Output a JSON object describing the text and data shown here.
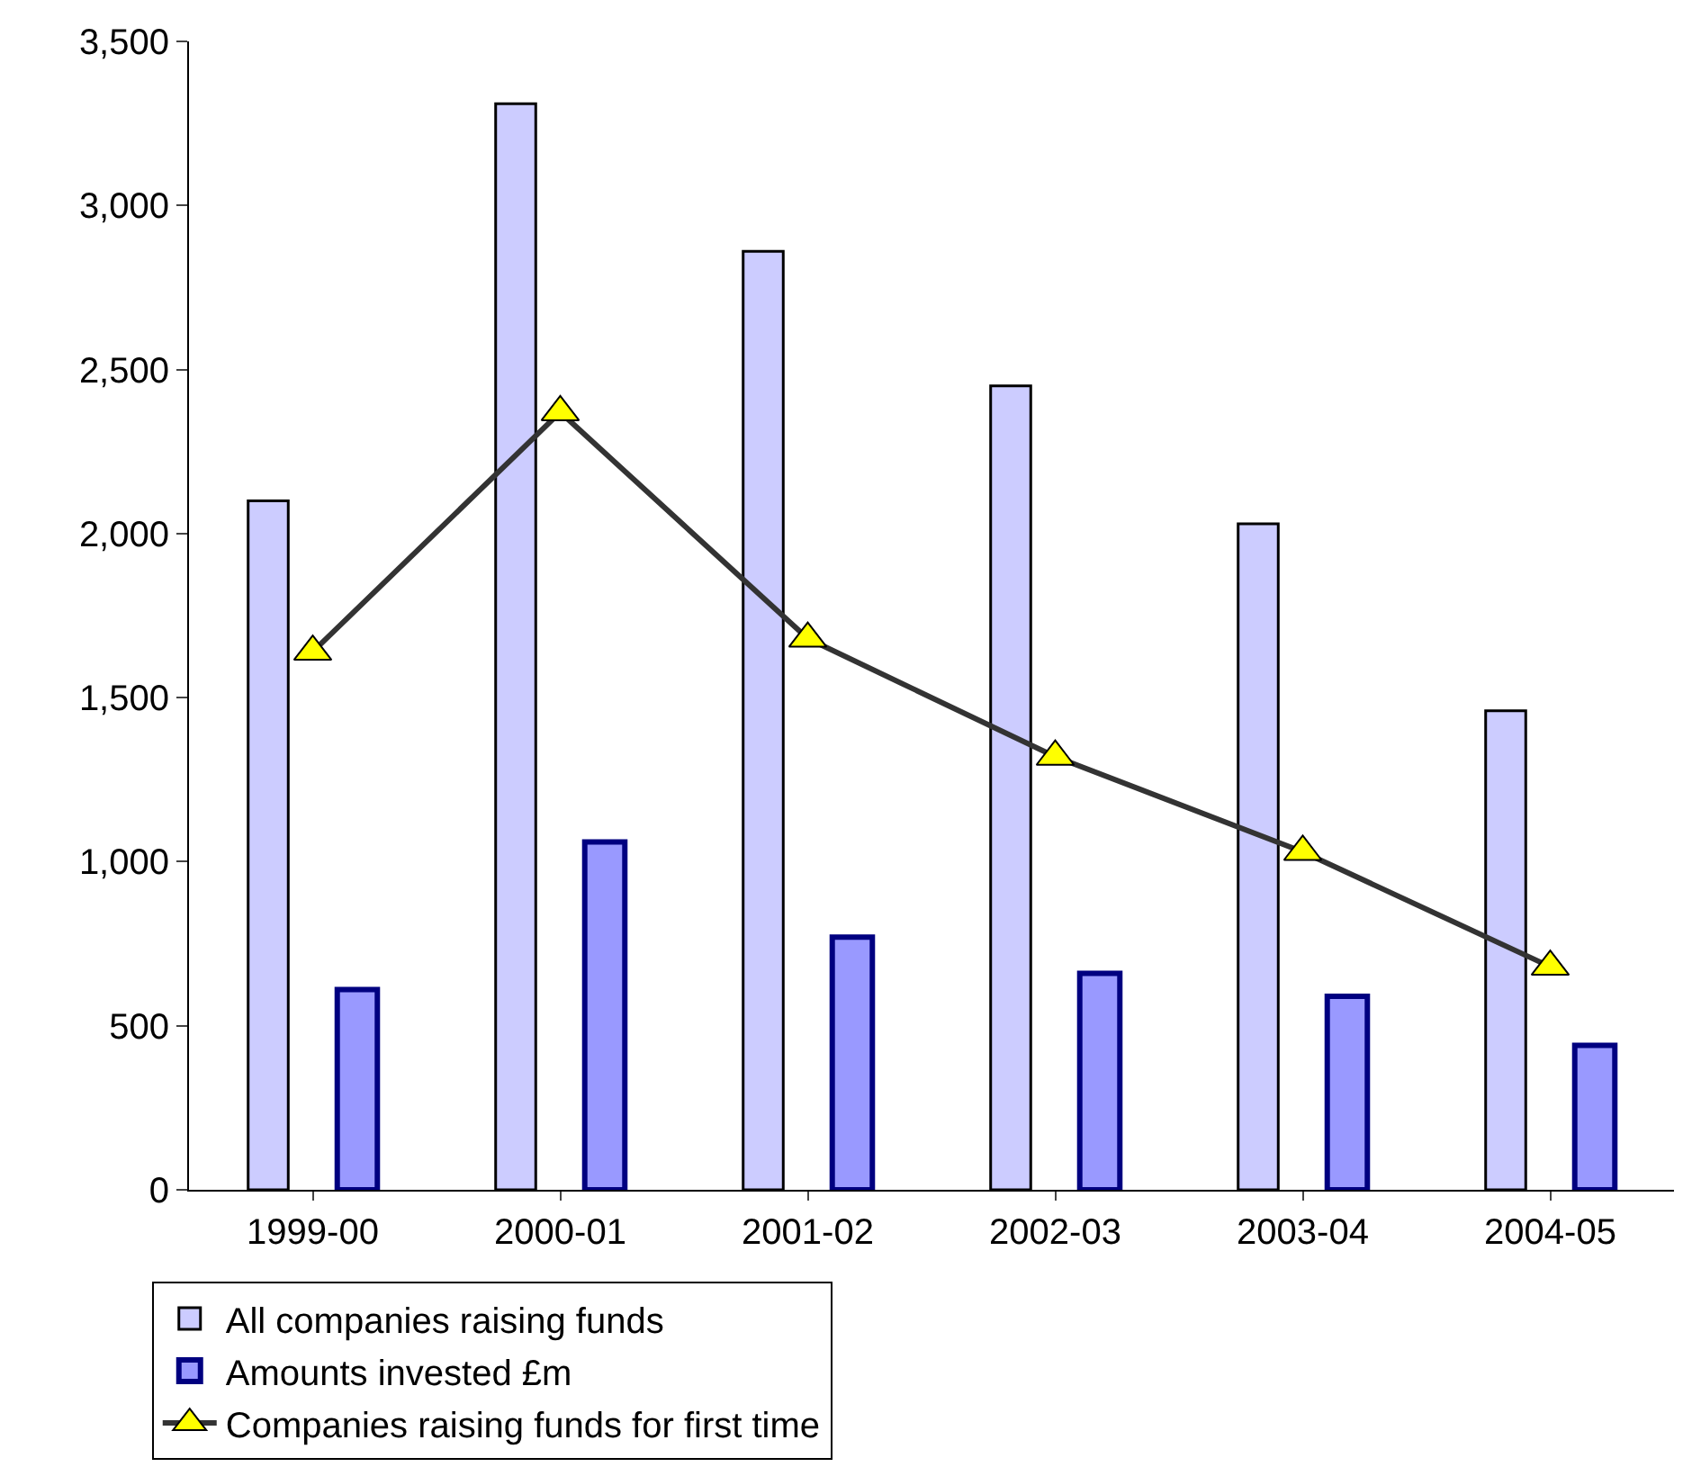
{
  "chart_data": {
    "type": "bar",
    "categories": [
      "1999-00",
      "2000-01",
      "2001-02",
      "2002-03",
      "2003-04",
      "2004-05"
    ],
    "series": [
      {
        "name": "All companies raising funds",
        "color": "#ccccff",
        "values": [
          2100,
          3310,
          2860,
          2450,
          2030,
          1460
        ]
      },
      {
        "name": "Amounts invested £m",
        "color": "#9999ff",
        "values": [
          610,
          1060,
          770,
          660,
          590,
          440
        ]
      },
      {
        "name": "Companies raising funds for first time",
        "type": "line",
        "color": "#333333",
        "marker": "triangle",
        "values": [
          1640,
          2370,
          1680,
          1320,
          1030,
          680
        ]
      }
    ],
    "ylim": [
      0,
      3500
    ],
    "yticks": [
      {
        "value": 0,
        "label": "0"
      },
      {
        "value": 500,
        "label": "500"
      },
      {
        "value": 1000,
        "label": "1,000"
      },
      {
        "value": 1500,
        "label": "1,500"
      },
      {
        "value": 2000,
        "label": "2,000"
      },
      {
        "value": 2500,
        "label": "2,500"
      },
      {
        "value": 3000,
        "label": "3,000"
      },
      {
        "value": 3500,
        "label": "3,500"
      }
    ],
    "grid": false,
    "legend": "bottom"
  }
}
